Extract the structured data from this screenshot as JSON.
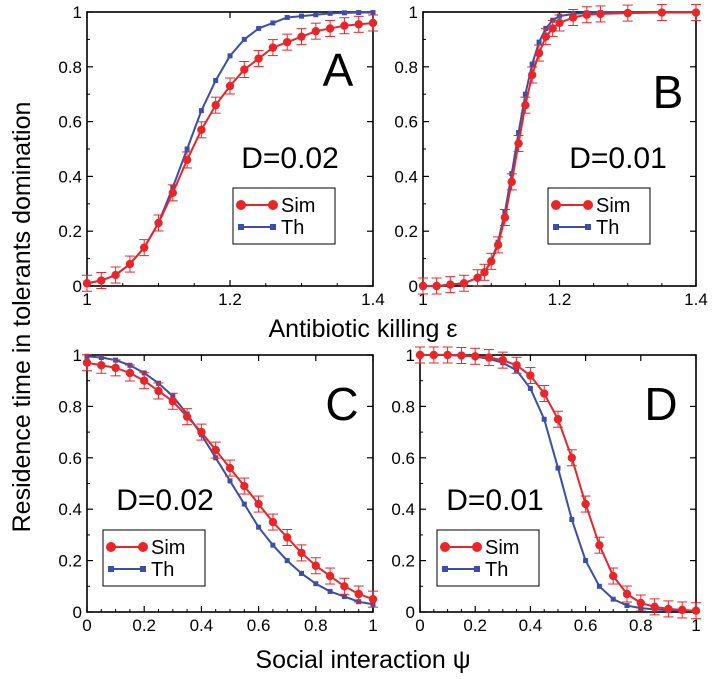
{
  "figure": {
    "ylabel": "Residence time in tolerants domination",
    "xlabel_top": "Antibiotic killing ε",
    "xlabel_bottom": "Social interaction ψ"
  },
  "chart_data": [
    {
      "type": "line",
      "panel_label": "A",
      "annotation": "D=0.02",
      "x_ticks": [
        "1",
        "1.2",
        "1.4"
      ],
      "y_ticks": [
        "0",
        "0.2",
        "0.4",
        "0.6",
        "0.8",
        "1"
      ],
      "xlim": [
        1,
        1.4
      ],
      "ylim": [
        0,
        1
      ],
      "legend_position": "center-right",
      "series": [
        {
          "name": "Sim",
          "color": "#e8262a",
          "marker": "circle",
          "error_bars": true,
          "x": [
            1.0,
            1.02,
            1.04,
            1.06,
            1.08,
            1.1,
            1.12,
            1.14,
            1.16,
            1.18,
            1.2,
            1.22,
            1.24,
            1.26,
            1.28,
            1.3,
            1.32,
            1.34,
            1.36,
            1.38,
            1.4
          ],
          "y": [
            0.01,
            0.02,
            0.04,
            0.08,
            0.14,
            0.23,
            0.34,
            0.46,
            0.57,
            0.66,
            0.73,
            0.79,
            0.83,
            0.87,
            0.89,
            0.91,
            0.93,
            0.94,
            0.95,
            0.955,
            0.96
          ]
        },
        {
          "name": "Th",
          "color": "#3b4fa8",
          "marker": "square",
          "x": [
            1.0,
            1.02,
            1.04,
            1.06,
            1.08,
            1.1,
            1.12,
            1.14,
            1.16,
            1.18,
            1.2,
            1.22,
            1.24,
            1.26,
            1.28,
            1.3,
            1.32,
            1.34,
            1.36,
            1.38,
            1.4
          ],
          "y": [
            0.01,
            0.02,
            0.04,
            0.08,
            0.14,
            0.23,
            0.36,
            0.5,
            0.64,
            0.75,
            0.84,
            0.9,
            0.94,
            0.96,
            0.98,
            0.985,
            0.99,
            0.995,
            0.997,
            0.998,
            0.998
          ]
        }
      ]
    },
    {
      "type": "line",
      "panel_label": "B",
      "annotation": "D=0.01",
      "x_ticks": [
        "1",
        "1.2",
        "1.4"
      ],
      "y_ticks": [
        "0",
        "0.2",
        "0.4",
        "0.6",
        "0.8",
        "1"
      ],
      "xlim": [
        1,
        1.4
      ],
      "ylim": [
        0,
        1
      ],
      "legend_position": "bottom-right",
      "series": [
        {
          "name": "Sim",
          "color": "#e8262a",
          "marker": "circle",
          "error_bars": true,
          "x": [
            1.0,
            1.02,
            1.04,
            1.06,
            1.08,
            1.09,
            1.1,
            1.11,
            1.12,
            1.13,
            1.14,
            1.15,
            1.16,
            1.17,
            1.18,
            1.19,
            1.2,
            1.22,
            1.24,
            1.26,
            1.3,
            1.35,
            1.4
          ],
          "y": [
            0.0,
            0.0,
            0.005,
            0.01,
            0.03,
            0.05,
            0.09,
            0.15,
            0.25,
            0.38,
            0.52,
            0.66,
            0.77,
            0.85,
            0.91,
            0.94,
            0.96,
            0.98,
            0.99,
            0.993,
            0.996,
            0.998,
            0.998
          ]
        },
        {
          "name": "Th",
          "color": "#3b4fa8",
          "marker": "square",
          "x": [
            1.0,
            1.02,
            1.04,
            1.06,
            1.08,
            1.09,
            1.1,
            1.11,
            1.12,
            1.13,
            1.14,
            1.15,
            1.16,
            1.17,
            1.18,
            1.19,
            1.2,
            1.22,
            1.24,
            1.26,
            1.3,
            1.35,
            1.4
          ],
          "y": [
            0.0,
            0.0,
            0.005,
            0.01,
            0.03,
            0.05,
            0.09,
            0.16,
            0.27,
            0.41,
            0.56,
            0.7,
            0.81,
            0.89,
            0.94,
            0.97,
            0.985,
            0.993,
            0.997,
            0.998,
            0.999,
            0.999,
            0.999
          ]
        }
      ]
    },
    {
      "type": "line",
      "panel_label": "C",
      "annotation": "D=0.02",
      "x_ticks": [
        "0",
        "0.2",
        "0.4",
        "0.6",
        "0.8",
        "1"
      ],
      "y_ticks": [
        "0",
        "0.2",
        "0.4",
        "0.6",
        "0.8",
        "1"
      ],
      "xlim": [
        0,
        1
      ],
      "ylim": [
        0,
        1
      ],
      "legend_position": "bottom-left",
      "series": [
        {
          "name": "Sim",
          "color": "#e8262a",
          "marker": "circle",
          "error_bars": true,
          "x": [
            0.0,
            0.05,
            0.1,
            0.15,
            0.2,
            0.25,
            0.3,
            0.35,
            0.4,
            0.45,
            0.5,
            0.55,
            0.6,
            0.65,
            0.7,
            0.75,
            0.8,
            0.85,
            0.9,
            0.95,
            1.0
          ],
          "y": [
            0.97,
            0.96,
            0.95,
            0.93,
            0.9,
            0.86,
            0.82,
            0.76,
            0.7,
            0.63,
            0.56,
            0.49,
            0.42,
            0.35,
            0.29,
            0.23,
            0.18,
            0.14,
            0.1,
            0.07,
            0.05
          ]
        },
        {
          "name": "Th",
          "color": "#3b4fa8",
          "marker": "square",
          "x": [
            0.0,
            0.05,
            0.1,
            0.15,
            0.2,
            0.25,
            0.3,
            0.35,
            0.4,
            0.45,
            0.5,
            0.55,
            0.6,
            0.65,
            0.7,
            0.75,
            0.8,
            0.85,
            0.9,
            0.95,
            1.0
          ],
          "y": [
            0.995,
            0.99,
            0.98,
            0.96,
            0.93,
            0.89,
            0.84,
            0.77,
            0.69,
            0.6,
            0.51,
            0.42,
            0.33,
            0.26,
            0.2,
            0.15,
            0.11,
            0.08,
            0.06,
            0.04,
            0.03
          ]
        }
      ]
    },
    {
      "type": "line",
      "panel_label": "D",
      "annotation": "D=0.01",
      "x_ticks": [
        "0",
        "0.2",
        "0.4",
        "0.6",
        "0.8",
        "1"
      ],
      "y_ticks": [
        "0",
        "0.2",
        "0.4",
        "0.6",
        "0.8",
        "1"
      ],
      "xlim": [
        0,
        1
      ],
      "ylim": [
        0,
        1
      ],
      "legend_position": "bottom-left",
      "series": [
        {
          "name": "Sim",
          "color": "#e8262a",
          "marker": "circle",
          "error_bars": true,
          "x": [
            0.0,
            0.05,
            0.1,
            0.15,
            0.2,
            0.25,
            0.3,
            0.35,
            0.4,
            0.45,
            0.5,
            0.55,
            0.6,
            0.65,
            0.7,
            0.75,
            0.8,
            0.85,
            0.9,
            0.95,
            1.0
          ],
          "y": [
            1.0,
            1.0,
            1.0,
            0.998,
            0.995,
            0.99,
            0.98,
            0.96,
            0.92,
            0.85,
            0.75,
            0.6,
            0.42,
            0.26,
            0.14,
            0.07,
            0.035,
            0.02,
            0.012,
            0.008,
            0.005
          ]
        },
        {
          "name": "Th",
          "color": "#3b4fa8",
          "marker": "square",
          "x": [
            0.0,
            0.05,
            0.1,
            0.15,
            0.2,
            0.25,
            0.3,
            0.35,
            0.4,
            0.45,
            0.5,
            0.55,
            0.6,
            0.65,
            0.7,
            0.75,
            0.8,
            0.85,
            0.9,
            0.95,
            1.0
          ],
          "y": [
            1.0,
            1.0,
            1.0,
            0.998,
            0.994,
            0.985,
            0.97,
            0.94,
            0.87,
            0.75,
            0.56,
            0.36,
            0.2,
            0.1,
            0.05,
            0.025,
            0.015,
            0.01,
            0.007,
            0.005,
            0.004
          ]
        }
      ]
    }
  ]
}
